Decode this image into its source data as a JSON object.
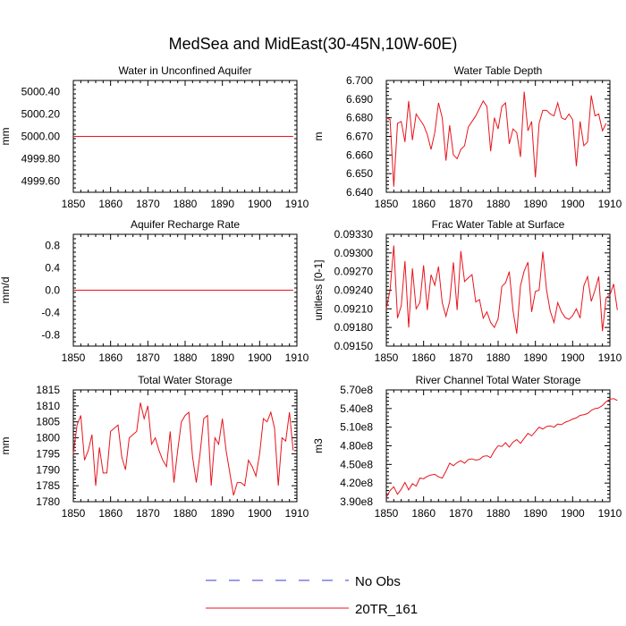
{
  "title": "MedSea and MidEast(30-45N,10W-60E)",
  "colors": {
    "model": "#e8141c",
    "obs": "#3a3ad0",
    "frame": "#000000"
  },
  "legend": [
    {
      "label": "No Obs",
      "style": "dashed"
    },
    {
      "label": "20TR_161",
      "style": "solid"
    }
  ],
  "chart_data": [
    {
      "type": "line",
      "title": "Water in Unconfined Aquifer",
      "ylabel": "mm",
      "xlim": [
        1850,
        1910
      ],
      "ylim": [
        4999.5,
        5000.5
      ],
      "xticks": [
        1850,
        1860,
        1870,
        1880,
        1890,
        1900,
        1910
      ],
      "yticks": [
        4999.6,
        4999.8,
        5000.0,
        5000.2,
        5000.4
      ],
      "ytick_labels": [
        "4999.60",
        "4999.80",
        "5000.00",
        "5000.20",
        "5000.40"
      ],
      "series": [
        {
          "name": "20TR_161",
          "x0": 1850,
          "dx": 1,
          "values": [
            5000,
            5000,
            5000,
            5000,
            5000,
            5000,
            5000,
            5000,
            5000,
            5000,
            5000,
            5000,
            5000,
            5000,
            5000,
            5000,
            5000,
            5000,
            5000,
            5000,
            5000,
            5000,
            5000,
            5000,
            5000,
            5000,
            5000,
            5000,
            5000,
            5000,
            5000,
            5000,
            5000,
            5000,
            5000,
            5000,
            5000,
            5000,
            5000,
            5000,
            5000,
            5000,
            5000,
            5000,
            5000,
            5000,
            5000,
            5000,
            5000,
            5000,
            5000,
            5000,
            5000,
            5000,
            5000,
            5000,
            5000,
            5000,
            5000,
            5000
          ]
        }
      ]
    },
    {
      "type": "line",
      "title": "Water Table Depth",
      "ylabel": "m",
      "xlim": [
        1850,
        1910
      ],
      "ylim": [
        6.64,
        6.7
      ],
      "xticks": [
        1850,
        1860,
        1870,
        1880,
        1890,
        1900,
        1910
      ],
      "yticks": [
        6.64,
        6.65,
        6.66,
        6.67,
        6.68,
        6.69,
        6.7
      ],
      "ytick_labels": [
        "6.640",
        "6.650",
        "6.660",
        "6.670",
        "6.680",
        "6.690",
        "6.700"
      ],
      "series": [
        {
          "name": "20TR_161",
          "x0": 1850,
          "dx": 1,
          "values": [
            6.68,
            6.679,
            6.643,
            6.677,
            6.678,
            6.667,
            6.689,
            6.668,
            6.682,
            6.679,
            6.676,
            6.671,
            6.663,
            6.672,
            6.688,
            6.68,
            6.657,
            6.676,
            6.66,
            6.658,
            6.663,
            6.665,
            6.675,
            6.678,
            6.681,
            6.685,
            6.689,
            6.686,
            6.662,
            6.68,
            6.674,
            6.686,
            6.688,
            6.666,
            6.674,
            6.672,
            6.659,
            6.694,
            6.673,
            6.678,
            6.648,
            6.677,
            6.684,
            6.684,
            6.682,
            6.681,
            6.688,
            6.68,
            6.679,
            6.682,
            6.679,
            6.654,
            6.678,
            6.665,
            6.667,
            6.692,
            6.681,
            6.682,
            6.673,
            6.677
          ]
        }
      ]
    },
    {
      "type": "line",
      "title": "Aquifer Recharge Rate",
      "ylabel": "mm/d",
      "xlim": [
        1850,
        1910
      ],
      "ylim": [
        -1,
        1
      ],
      "xticks": [
        1850,
        1860,
        1870,
        1880,
        1890,
        1900,
        1910
      ],
      "yticks": [
        -0.8,
        -0.4,
        0.0,
        0.4,
        0.8
      ],
      "ytick_labels": [
        "-0.8",
        "-0.4",
        "0.0",
        "0.4",
        "0.8"
      ],
      "series": [
        {
          "name": "20TR_161",
          "x0": 1850,
          "dx": 1,
          "values": [
            0,
            0,
            0,
            0,
            0,
            0,
            0,
            0,
            0,
            0,
            0,
            0,
            0,
            0,
            0,
            0,
            0,
            0,
            0,
            0,
            0,
            0,
            0,
            0,
            0,
            0,
            0,
            0,
            0,
            0,
            0,
            0,
            0,
            0,
            0,
            0,
            0,
            0,
            0,
            0,
            0,
            0,
            0,
            0,
            0,
            0,
            0,
            0,
            0,
            0,
            0,
            0,
            0,
            0,
            0,
            0,
            0,
            0,
            0,
            0
          ]
        }
      ]
    },
    {
      "type": "line",
      "title": "Frac Water Table at Surface",
      "ylabel": "unitless [0-1]",
      "xlim": [
        1850,
        1910
      ],
      "ylim": [
        0.0915,
        0.0933
      ],
      "xticks": [
        1850,
        1860,
        1870,
        1880,
        1890,
        1900,
        1910
      ],
      "yticks": [
        0.0915,
        0.0918,
        0.0921,
        0.0924,
        0.0927,
        0.093,
        0.0933
      ],
      "ytick_labels": [
        "0.09150",
        "0.09180",
        "0.09210",
        "0.09240",
        "0.09270",
        "0.09300",
        "0.09330"
      ],
      "series": [
        {
          "name": "20TR_161",
          "x0": 1850,
          "dx": 1,
          "values": [
            0.0921,
            0.0924,
            0.09312,
            0.09195,
            0.09215,
            0.09287,
            0.0918,
            0.09275,
            0.0921,
            0.0922,
            0.0928,
            0.09208,
            0.09265,
            0.09248,
            0.09278,
            0.0922,
            0.09198,
            0.09222,
            0.09285,
            0.09208,
            0.09303,
            0.09254,
            0.0926,
            0.09265,
            0.09221,
            0.09225,
            0.09195,
            0.09205,
            0.09188,
            0.0918,
            0.09194,
            0.09246,
            0.09252,
            0.0927,
            0.09207,
            0.0917,
            0.09247,
            0.09271,
            0.09285,
            0.09205,
            0.09238,
            0.0924,
            0.09302,
            0.0924,
            0.09206,
            0.09188,
            0.0922,
            0.09205,
            0.09196,
            0.09193,
            0.09199,
            0.0921,
            0.09195,
            0.09247,
            0.09262,
            0.09222,
            0.0924,
            0.09262,
            0.09174,
            0.09228,
            0.09232,
            0.0925,
            0.09208
          ]
        }
      ]
    },
    {
      "type": "line",
      "title": "Total Water Storage",
      "ylabel": "mm",
      "xlim": [
        1850,
        1910
      ],
      "ylim": [
        1780,
        1815
      ],
      "xticks": [
        1850,
        1860,
        1870,
        1880,
        1890,
        1900,
        1910
      ],
      "yticks": [
        1780,
        1785,
        1790,
        1795,
        1800,
        1805,
        1810,
        1815
      ],
      "ytick_labels": [
        "1780",
        "1785",
        "1790",
        "1795",
        "1800",
        "1805",
        "1810",
        "1815"
      ],
      "series": [
        {
          "name": "20TR_161",
          "x0": 1850,
          "dx": 1,
          "values": [
            1795,
            1804,
            1807,
            1793,
            1796,
            1801,
            1785,
            1797,
            1789,
            1789,
            1802,
            1803,
            1804,
            1794,
            1790,
            1800,
            1801,
            1802,
            1811,
            1806,
            1810,
            1798,
            1800,
            1796,
            1793,
            1791,
            1802,
            1786,
            1796,
            1805,
            1807,
            1808,
            1794,
            1786,
            1795,
            1806,
            1807,
            1785,
            1800,
            1798,
            1806,
            1796,
            1789,
            1782,
            1786,
            1786,
            1785,
            1793,
            1791,
            1788,
            1795,
            1806,
            1805,
            1808,
            1803,
            1785,
            1800,
            1799,
            1808,
            1796
          ]
        }
      ]
    },
    {
      "type": "line",
      "title": "River Channel Total Water Storage",
      "ylabel": "m3",
      "xlim": [
        1850,
        1910
      ],
      "ylim": [
        390000000,
        570000000
      ],
      "xticks": [
        1850,
        1860,
        1870,
        1880,
        1890,
        1900,
        1910
      ],
      "yticks": [
        390000000,
        420000000,
        450000000,
        480000000,
        510000000,
        540000000,
        570000000
      ],
      "ytick_labels": [
        "3.90e8",
        "4.20e8",
        "4.50e8",
        "4.80e8",
        "5.10e8",
        "5.40e8",
        "5.70e8"
      ],
      "series": [
        {
          "name": "20TR_161",
          "x0": 1850,
          "dx": 1,
          "values": [
            397000000,
            408000000,
            414000000,
            402000000,
            410000000,
            421000000,
            409000000,
            419000000,
            415000000,
            428000000,
            427000000,
            431000000,
            433000000,
            434000000,
            430000000,
            428000000,
            439000000,
            452000000,
            448000000,
            453000000,
            456000000,
            452000000,
            458000000,
            459000000,
            457000000,
            458000000,
            463000000,
            464000000,
            461000000,
            472000000,
            480000000,
            479000000,
            485000000,
            478000000,
            486000000,
            490000000,
            484000000,
            492000000,
            500000000,
            496000000,
            503000000,
            510000000,
            507000000,
            511000000,
            512000000,
            510000000,
            515000000,
            514000000,
            518000000,
            520000000,
            523000000,
            525000000,
            529000000,
            530000000,
            532000000,
            537000000,
            540000000,
            541000000,
            545000000,
            551000000,
            555000000,
            556000000,
            553000000
          ]
        }
      ]
    }
  ]
}
